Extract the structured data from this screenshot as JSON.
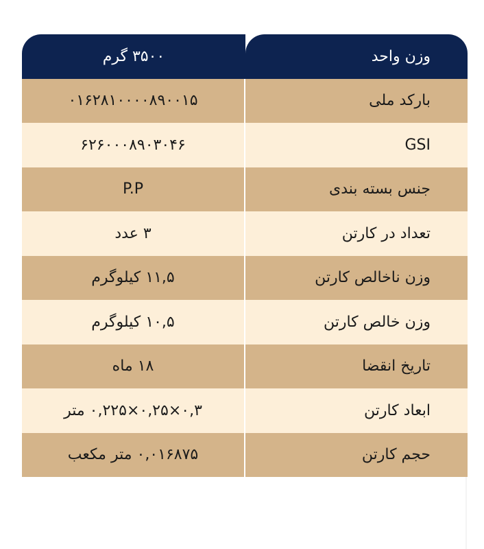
{
  "table": {
    "header": [
      "وزن واحد",
      "۳۵۰۰ گرم"
    ],
    "rows": [
      [
        "بارکد ملی",
        "۰۱۶۲۸۱۰۰۰۰۸۹۰۰۱۵"
      ],
      [
        "GSI",
        "۶۲۶۰۰۰۸۹۰۳۰۴۶"
      ],
      [
        "جنس بسته بندی",
        "P.P"
      ],
      [
        "تعداد در کارتن",
        "۳ عدد"
      ],
      [
        "وزن ناخالص کارتن",
        "۱۱,۵ کیلوگرم"
      ],
      [
        "وزن خالص کارتن",
        "۱۰,۵ کیلوگرم"
      ],
      [
        "تاریخ انقضا",
        "۱۸ ماه"
      ],
      [
        "ابعاد کارتن",
        "۰,۳×۰,۲۵×۰,۲۲۵ متر"
      ],
      [
        "حجم کارتن",
        "۰,۰۱۶۸۷۵ متر مکعب"
      ]
    ]
  }
}
